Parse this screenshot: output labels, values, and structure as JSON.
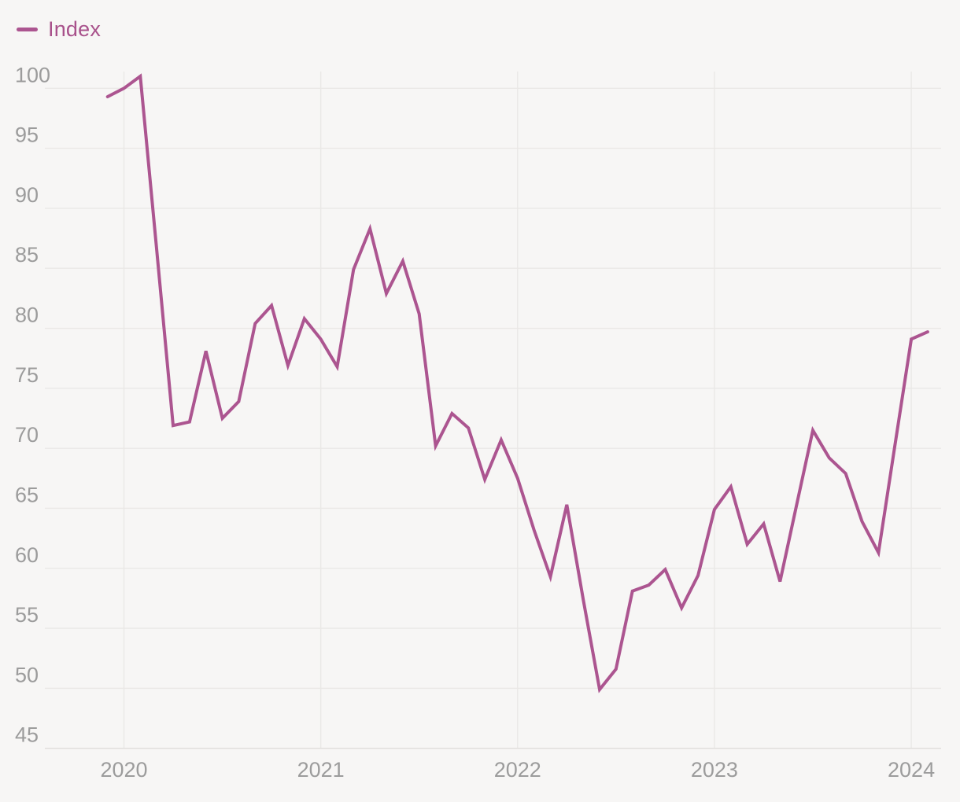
{
  "page": {
    "background": "#f7f6f5"
  },
  "legend": {
    "label": "Index",
    "swatch_color": "#ac5590",
    "text_color": "#a8518b"
  },
  "chart_data": {
    "type": "line",
    "title": "",
    "xlabel": "",
    "ylabel": "",
    "grid": true,
    "legend_position": "top-left",
    "ylim": [
      45,
      101.5
    ],
    "y_ticks": [
      100,
      95,
      90,
      85,
      80,
      75,
      70,
      65,
      60,
      55,
      50,
      45
    ],
    "x_tick_labels": [
      "2020",
      "2021",
      "2022",
      "2023",
      "2024"
    ],
    "grid_color": "#eae8e6",
    "axis_line_color": "#dfddda",
    "axis_label_color": "#9c9c9c",
    "series": [
      {
        "name": "Index",
        "color": "#ac5590",
        "x": [
          "2019-12",
          "2020-01",
          "2020-02",
          "2020-03",
          "2020-04",
          "2020-05",
          "2020-06",
          "2020-07",
          "2020-08",
          "2020-09",
          "2020-10",
          "2020-11",
          "2020-12",
          "2021-01",
          "2021-02",
          "2021-03",
          "2021-04",
          "2021-05",
          "2021-06",
          "2021-07",
          "2021-08",
          "2021-09",
          "2021-10",
          "2021-11",
          "2021-12",
          "2022-01",
          "2022-02",
          "2022-03",
          "2022-04",
          "2022-05",
          "2022-06",
          "2022-07",
          "2022-08",
          "2022-09",
          "2022-10",
          "2022-11",
          "2022-12",
          "2023-01",
          "2023-02",
          "2023-03",
          "2023-04",
          "2023-05",
          "2023-06",
          "2023-07",
          "2023-08",
          "2023-09",
          "2023-10",
          "2023-11",
          "2023-12",
          "2024-01",
          "2024-02"
        ],
        "values": [
          99.3,
          100.0,
          101.0,
          86.5,
          71.9,
          72.2,
          78.1,
          72.5,
          73.9,
          80.4,
          81.9,
          76.9,
          80.8,
          79.1,
          76.8,
          84.9,
          88.3,
          82.9,
          85.6,
          81.2,
          70.2,
          72.9,
          71.7,
          67.4,
          70.7,
          67.5,
          63.2,
          59.3,
          65.3,
          57.4,
          49.9,
          51.6,
          58.1,
          58.6,
          59.9,
          56.7,
          59.4,
          64.9,
          66.8,
          62.0,
          63.7,
          58.9,
          65.2,
          71.5,
          69.2,
          67.9,
          63.9,
          61.3,
          70.2,
          79.1,
          79.7
        ]
      }
    ]
  }
}
